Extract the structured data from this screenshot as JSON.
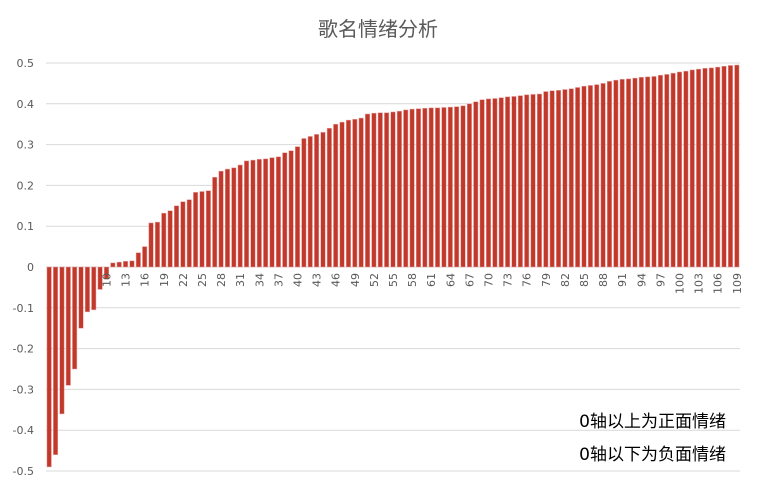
{
  "chart_data": {
    "type": "bar",
    "title": "歌名情绪分析",
    "xlabel": "",
    "ylabel": "",
    "ylim": [
      -0.5,
      0.5
    ],
    "y_ticks": [
      "0.5",
      "0.4",
      "0.3",
      "0.2",
      "0.1",
      "0",
      "-0.1",
      "-0.2",
      "-0.3",
      "-0.4",
      "-0.5"
    ],
    "x_tick_labels": [
      "10",
      "13",
      "16",
      "19",
      "22",
      "25",
      "28",
      "31",
      "34",
      "37",
      "40",
      "43",
      "46",
      "49",
      "52",
      "55",
      "58",
      "61",
      "64",
      "67",
      "70",
      "73",
      "76",
      "79",
      "82",
      "85",
      "88",
      "91",
      "94",
      "97",
      "100",
      "103",
      "106",
      "109"
    ],
    "grid": true,
    "legend": "none",
    "bar_color": "#c0392b",
    "bar_edge_color": "#e8a0a0",
    "annotations": [
      "0轴以上为正面情绪",
      "0轴以下为负面情绪"
    ],
    "categories": [
      1,
      2,
      3,
      4,
      5,
      6,
      7,
      8,
      9,
      10,
      11,
      12,
      13,
      14,
      15,
      16,
      17,
      18,
      19,
      20,
      21,
      22,
      23,
      24,
      25,
      26,
      27,
      28,
      29,
      30,
      31,
      32,
      33,
      34,
      35,
      36,
      37,
      38,
      39,
      40,
      41,
      42,
      43,
      44,
      45,
      46,
      47,
      48,
      49,
      50,
      51,
      52,
      53,
      54,
      55,
      56,
      57,
      58,
      59,
      60,
      61,
      62,
      63,
      64,
      65,
      66,
      67,
      68,
      69,
      70,
      71,
      72,
      73,
      74,
      75,
      76,
      77,
      78,
      79,
      80,
      81,
      82,
      83,
      84,
      85,
      86,
      87,
      88,
      89,
      90,
      91,
      92,
      93,
      94,
      95,
      96,
      97,
      98,
      99,
      100,
      101,
      102,
      103,
      104,
      105,
      106,
      107,
      108,
      109
    ],
    "values": [
      -0.49,
      -0.46,
      -0.36,
      -0.29,
      -0.25,
      -0.15,
      -0.11,
      -0.105,
      -0.055,
      -0.03,
      0.01,
      0.012,
      0.014,
      0.015,
      0.035,
      0.05,
      0.108,
      0.11,
      0.132,
      0.138,
      0.15,
      0.16,
      0.165,
      0.183,
      0.185,
      0.187,
      0.22,
      0.235,
      0.24,
      0.243,
      0.25,
      0.26,
      0.262,
      0.264,
      0.265,
      0.268,
      0.27,
      0.28,
      0.285,
      0.295,
      0.315,
      0.32,
      0.325,
      0.33,
      0.34,
      0.35,
      0.355,
      0.36,
      0.362,
      0.365,
      0.375,
      0.377,
      0.378,
      0.378,
      0.38,
      0.382,
      0.385,
      0.387,
      0.388,
      0.389,
      0.39,
      0.39,
      0.391,
      0.392,
      0.393,
      0.395,
      0.4,
      0.405,
      0.41,
      0.412,
      0.413,
      0.415,
      0.417,
      0.418,
      0.42,
      0.422,
      0.423,
      0.424,
      0.43,
      0.432,
      0.433,
      0.435,
      0.437,
      0.44,
      0.443,
      0.445,
      0.447,
      0.45,
      0.455,
      0.458,
      0.46,
      0.461,
      0.463,
      0.465,
      0.466,
      0.467,
      0.47,
      0.472,
      0.475,
      0.478,
      0.48,
      0.483,
      0.485,
      0.487,
      0.488,
      0.49,
      0.492,
      0.494,
      0.495
    ]
  }
}
